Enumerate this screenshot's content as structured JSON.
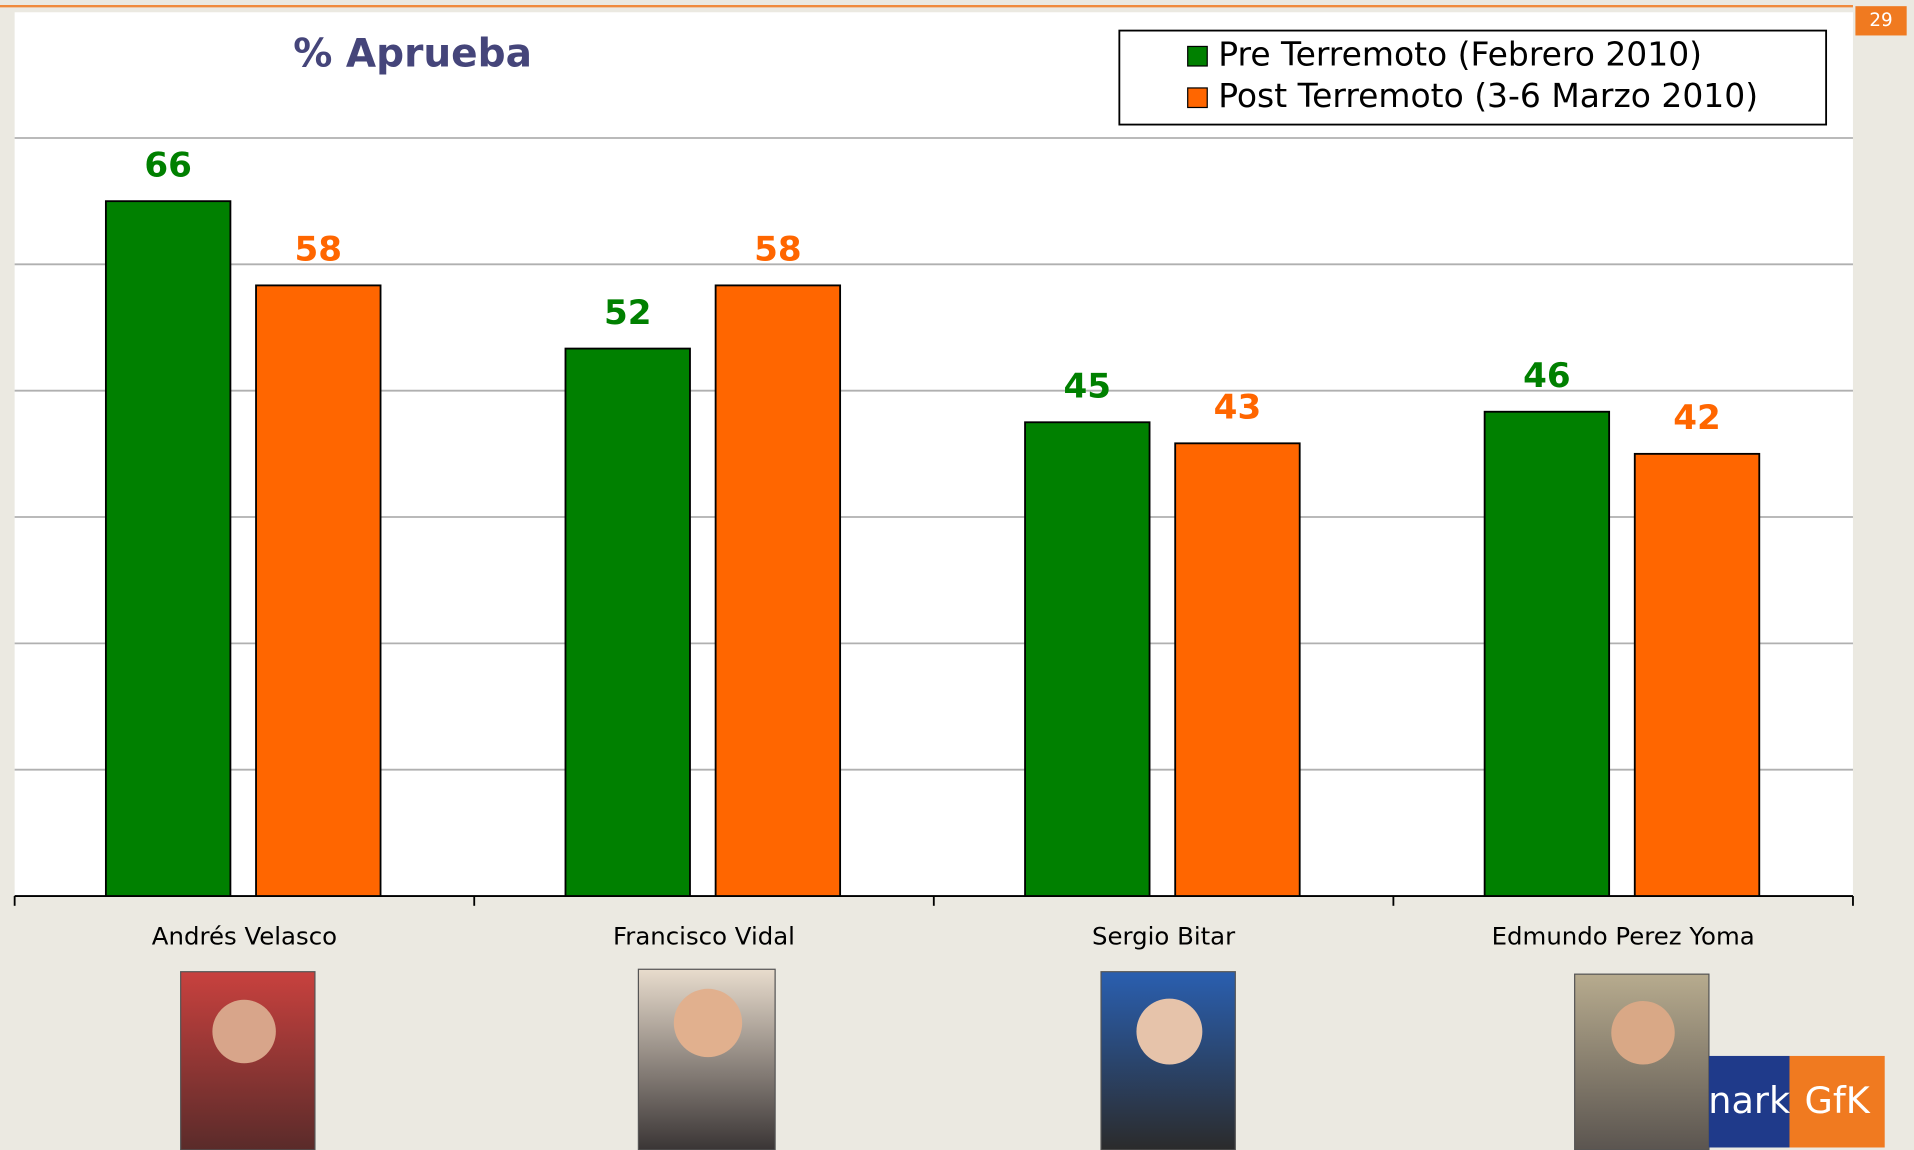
{
  "page_number": "29",
  "logo": {
    "left": "nark",
    "right": "GfK"
  },
  "chart_data": {
    "type": "bar",
    "title": "% Aprueba",
    "categories": [
      "Andrés Velasco",
      "Francisco Vidal",
      "Sergio Bitar",
      "Edmundo Perez Yoma"
    ],
    "series": [
      {
        "name": "Pre Terremoto (Febrero 2010)",
        "color": "#008000",
        "label_color": "#008000",
        "values": [
          66,
          52,
          45,
          46
        ]
      },
      {
        "name": "Post Terremoto (3-6 Marzo 2010)",
        "color": "#ff6600",
        "label_color": "#ff6600",
        "values": [
          58,
          58,
          43,
          42
        ]
      }
    ],
    "ylim": [
      0,
      72
    ],
    "yticks": [
      0,
      12,
      24,
      36,
      48,
      60,
      72
    ],
    "grid": true,
    "legend": "top-right"
  }
}
